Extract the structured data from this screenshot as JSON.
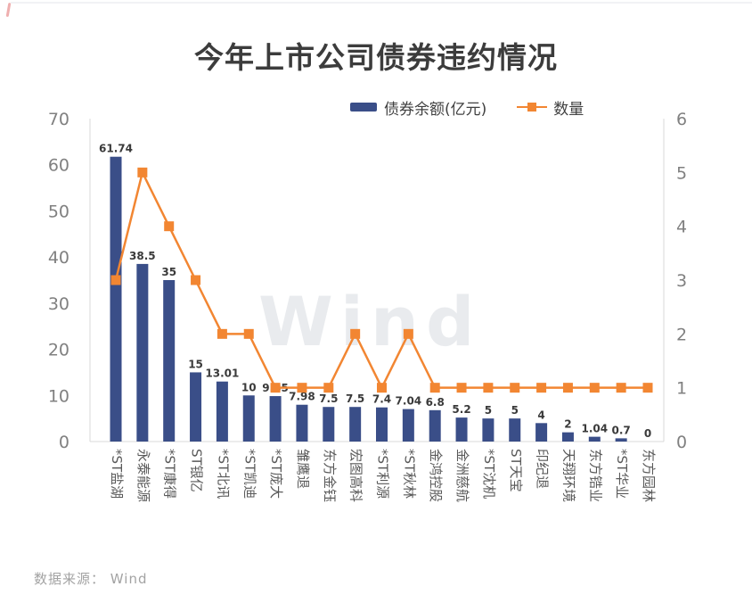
{
  "title": "今年上市公司债券违约情况",
  "watermark": "Wind",
  "source": "数据来源： Wind",
  "chart_data": {
    "type": "bar",
    "subtype": "combo-bar-line",
    "title": "今年上市公司债券违约情况",
    "categories": [
      "*ST盐湖",
      "永泰能源",
      "*ST康得",
      "ST银亿",
      "*ST北讯",
      "*ST凯迪",
      "*ST庞大",
      "雏鹰退",
      "东方金钰",
      "宏图高科",
      "*ST利源",
      "*ST秋林",
      "金鸿控股",
      "金洲慈航",
      "*ST沈机",
      "ST天宝",
      "印纪退",
      "天翔环境",
      "东方锆业",
      "*ST华业",
      "东方园林"
    ],
    "series": [
      {
        "name": "债券余额(亿元)",
        "type": "bar",
        "axis": "left",
        "color": "#3A4E88",
        "values": [
          61.74,
          38.5,
          35,
          15,
          13.01,
          10,
          9.85,
          7.98,
          7.5,
          7.5,
          7.4,
          7.04,
          6.8,
          5.2,
          5,
          5,
          4,
          2,
          1.04,
          0.7,
          0
        ],
        "labels": [
          "61.74",
          "38.5",
          "35",
          "15",
          "13.01",
          "10",
          "9.85",
          "7.98",
          "7.5",
          "7.5",
          "7.4",
          "7.04",
          "6.8",
          "5.2",
          "5",
          "5",
          "4",
          "2",
          "1.04",
          "0.7",
          "0"
        ]
      },
      {
        "name": "数量",
        "type": "line",
        "axis": "right",
        "color": "#F28632",
        "values": [
          3,
          5,
          4,
          3,
          2,
          2,
          1,
          1,
          1,
          2,
          1,
          2,
          1,
          1,
          1,
          1,
          1,
          1,
          1,
          1,
          1
        ]
      }
    ],
    "left_axis": {
      "range": [
        0,
        70
      ],
      "ticks": [
        0,
        10,
        20,
        30,
        40,
        50,
        60,
        70
      ]
    },
    "right_axis": {
      "range": [
        0,
        6
      ],
      "ticks": [
        0,
        1,
        2,
        3,
        4,
        5,
        6
      ]
    },
    "legend_position": "top-right",
    "grid": false,
    "colors": {
      "axis_line": "#d9d9d9",
      "tick_label": "#808080",
      "category_label": "#595959",
      "value_label": "#3a3a3a"
    }
  }
}
